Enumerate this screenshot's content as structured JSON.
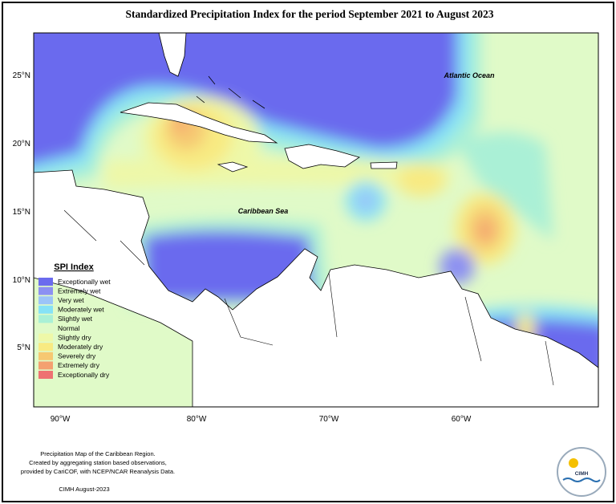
{
  "title": "Standardized Precipitation Index for the period September 2021 to August 2023",
  "map": {
    "lat_labels": [
      "25°N",
      "20°N",
      "15°N",
      "10°N",
      "5°N"
    ],
    "lon_labels": [
      "90°W",
      "80°W",
      "70°W",
      "60°W"
    ],
    "place_labels": [
      "Atlantic Ocean",
      "Caribbean Sea"
    ]
  },
  "legend": {
    "title": "SPI Index",
    "items": [
      {
        "label": "Exceptionally wet",
        "color": "#6b6bee"
      },
      {
        "label": "Extremely wet",
        "color": "#8c90f2"
      },
      {
        "label": "Very wet",
        "color": "#9cc4f8"
      },
      {
        "label": "Moderately wet",
        "color": "#86e2f6"
      },
      {
        "label": "Slightly wet",
        "color": "#aaf0d6"
      },
      {
        "label": "Normal",
        "color": "#e0fac8"
      },
      {
        "label": "Slightly dry",
        "color": "#eef8a8"
      },
      {
        "label": "Moderately dry",
        "color": "#f8ea82"
      },
      {
        "label": "Severely dry",
        "color": "#f6c872"
      },
      {
        "label": "Extremely dry",
        "color": "#f4a070"
      },
      {
        "label": "Exceptionally dry",
        "color": "#ee7272"
      }
    ]
  },
  "footer": {
    "notes": [
      "Precipitation Map of the Caribbean Region.",
      "Created by aggregating station based observations,",
      "provided by CariCOF, with NCEP/NCAR Reanalysis Data."
    ],
    "credit": "CIMH August-2023"
  },
  "logo": {
    "text": "CIMH"
  }
}
